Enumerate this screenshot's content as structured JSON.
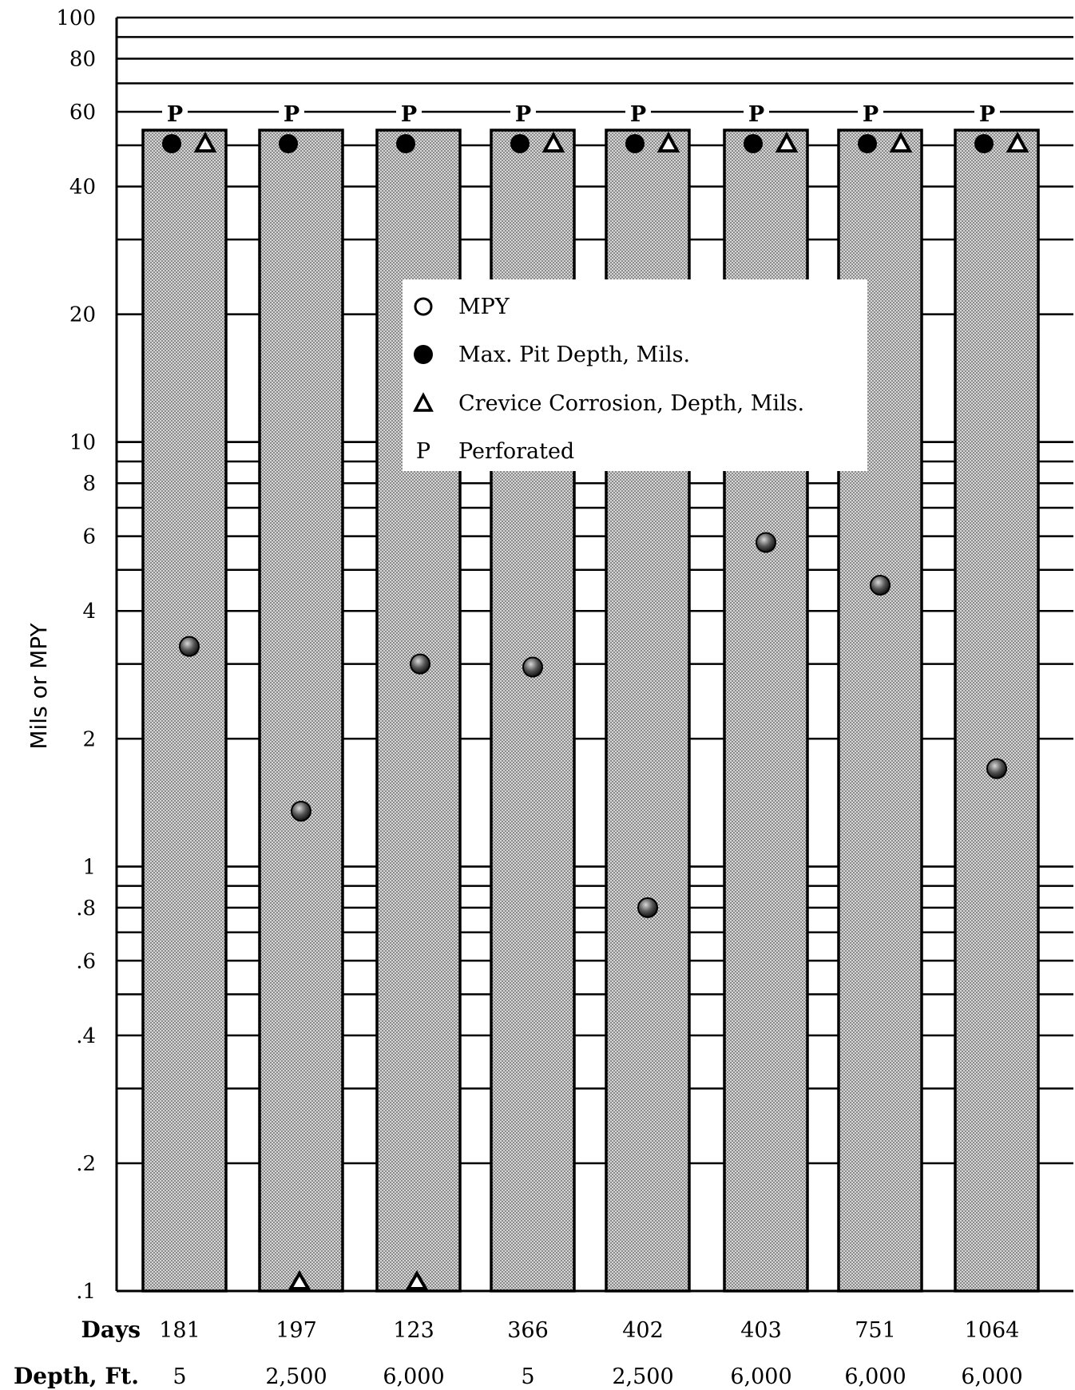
{
  "chart_data": {
    "type": "bar",
    "ylabel": "Mils or MPY",
    "yscale": "log",
    "ylim": [
      0.1,
      100
    ],
    "y_ticks": [
      "100",
      "80",
      "60",
      "40",
      "20",
      "10",
      "8",
      "6",
      "4",
      "2",
      "1",
      ".8",
      ".6",
      ".4",
      ".2",
      ".1"
    ],
    "y_tick_values": [
      100,
      80,
      60,
      40,
      20,
      10,
      8,
      6,
      4,
      2,
      1,
      0.8,
      0.6,
      0.4,
      0.2,
      0.1
    ],
    "row_labels": {
      "days": "Days",
      "depth": "Depth, Ft."
    },
    "categories": [
      {
        "days": "181",
        "depth": "5"
      },
      {
        "days": "197",
        "depth": "2,500"
      },
      {
        "days": "123",
        "depth": "6,000"
      },
      {
        "days": "366",
        "depth": "5"
      },
      {
        "days": "402",
        "depth": "2,500"
      },
      {
        "days": "403",
        "depth": "6,000"
      },
      {
        "days": "751",
        "depth": "6,000"
      },
      {
        "days": "1064",
        "depth": "6,000"
      }
    ],
    "perforated_marker": "P",
    "series": [
      {
        "name": "MPY",
        "marker": "circle-shaded",
        "values": [
          3.3,
          1.35,
          3.0,
          2.95,
          0.8,
          5.8,
          4.6,
          1.7
        ]
      },
      {
        "name": "Max. Pit Depth, Mils.",
        "marker": "filled-circle",
        "perforated": [
          true,
          true,
          true,
          true,
          true,
          true,
          true,
          true
        ]
      },
      {
        "name": "Crevice Corrosion, Depth, Mils.",
        "marker": "triangle",
        "perforated": [
          true,
          false,
          false,
          true,
          true,
          true,
          true,
          true
        ],
        "values": [
          null,
          0.1,
          0.1,
          null,
          null,
          null,
          null,
          null
        ]
      }
    ],
    "legend": {
      "position": "center",
      "items": [
        {
          "symbol": "open-circle",
          "label": "MPY"
        },
        {
          "symbol": "filled-circle",
          "label": "Max. Pit Depth, Mils."
        },
        {
          "symbol": "triangle",
          "label": "Crevice Corrosion, Depth, Mils."
        },
        {
          "symbol": "P",
          "label": "Perforated"
        }
      ]
    },
    "colors": {
      "bar_fill": "#c4c4c4",
      "ink": "#000000",
      "marker_fill": "#555555"
    }
  }
}
